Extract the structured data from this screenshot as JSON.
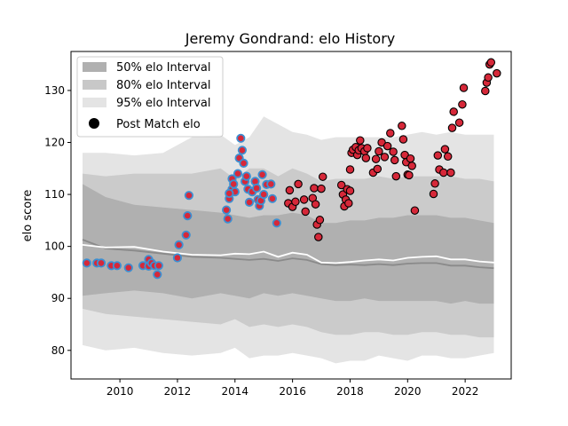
{
  "chart_data": {
    "type": "scatter",
    "title": "Jeremy Gondrand: elo History",
    "xlabel": "",
    "ylabel": "elo score",
    "xlim": [
      2008.3,
      2023.6
    ],
    "ylim": [
      74.5,
      137.5
    ],
    "xticks": [
      2010,
      2012,
      2014,
      2016,
      2018,
      2020,
      2022
    ],
    "yticks": [
      80,
      90,
      100,
      110,
      120,
      130
    ],
    "grid": false,
    "legend_position": "top-left",
    "legend": [
      {
        "label": "50% elo Interval",
        "kind": "band",
        "color": "#b0b0b0"
      },
      {
        "label": "80% elo Interval",
        "kind": "band",
        "color": "#c8c8c8"
      },
      {
        "label": "95% elo Interval",
        "kind": "band",
        "color": "#e4e4e4"
      },
      {
        "label": "Post Match elo",
        "kind": "marker",
        "color": "#000000"
      }
    ],
    "colors": {
      "band50": "#b0b0b0",
      "band80": "#cbcbcb",
      "band95": "#e4e4e4",
      "mean_line": "#8a8a8a",
      "median_line": "#ffffff",
      "point_fill": "#d62839",
      "edge_early": "#3d8fd1",
      "edge_late": "#000000"
    },
    "bands": {
      "x": [
        2008.7,
        2009.5,
        2010.5,
        2011.5,
        2012.5,
        2013.5,
        2014.0,
        2014.5,
        2015.0,
        2015.5,
        2016.0,
        2016.5,
        2017.0,
        2017.5,
        2018.0,
        2018.5,
        2019.0,
        2019.5,
        2020.0,
        2020.5,
        2021.0,
        2021.5,
        2022.0,
        2022.5,
        2023.0
      ],
      "mean": [
        101.3,
        99.6,
        99.2,
        98.6,
        98.0,
        97.8,
        97.6,
        97.4,
        97.6,
        97.2,
        97.7,
        97.4,
        96.6,
        96.4,
        96.5,
        96.4,
        96.6,
        96.4,
        96.7,
        96.8,
        96.8,
        96.3,
        96.3,
        96.0,
        95.8
      ],
      "median": [
        100.3,
        99.8,
        99.9,
        99.0,
        98.4,
        98.3,
        98.6,
        98.5,
        99.0,
        98.0,
        98.8,
        98.4,
        96.9,
        96.8,
        97.0,
        97.3,
        97.5,
        97.3,
        97.8,
        98.0,
        98.1,
        97.5,
        97.5,
        97.1,
        96.9
      ],
      "p25": [
        90.5,
        91.0,
        91.5,
        91.0,
        90.0,
        91.0,
        90.5,
        90.0,
        91.0,
        90.5,
        91.0,
        90.5,
        90.0,
        89.5,
        89.5,
        90.0,
        89.5,
        89.5,
        89.5,
        89.5,
        89.5,
        89.0,
        89.5,
        89.0,
        89.0
      ],
      "p75": [
        112.0,
        109.5,
        108.0,
        107.5,
        107.0,
        106.5,
        106.0,
        105.5,
        106.0,
        106.0,
        106.5,
        106.0,
        104.5,
        104.5,
        105.0,
        105.0,
        105.5,
        105.5,
        106.0,
        106.0,
        106.0,
        105.5,
        105.5,
        105.0,
        104.5
      ],
      "p10": [
        88.0,
        87.0,
        86.5,
        86.0,
        85.5,
        85.0,
        86.0,
        84.5,
        85.0,
        84.5,
        85.0,
        84.5,
        83.5,
        83.0,
        83.0,
        83.5,
        83.5,
        83.0,
        83.0,
        83.5,
        83.5,
        83.0,
        83.0,
        82.5,
        82.5
      ],
      "p90": [
        114.0,
        113.5,
        114.0,
        114.0,
        114.0,
        115.0,
        113.0,
        115.0,
        115.0,
        113.5,
        115.0,
        114.0,
        112.5,
        113.0,
        113.0,
        113.0,
        113.5,
        113.0,
        113.5,
        113.5,
        113.5,
        113.5,
        113.0,
        113.0,
        112.5
      ],
      "p2_5": [
        81.0,
        80.0,
        80.5,
        79.5,
        79.0,
        79.5,
        80.5,
        78.5,
        79.0,
        79.0,
        79.5,
        79.0,
        78.5,
        77.5,
        78.0,
        78.0,
        79.0,
        78.5,
        78.0,
        79.0,
        79.0,
        78.5,
        78.5,
        79.0,
        79.5
      ],
      "p97_5": [
        118.0,
        118.0,
        117.5,
        118.0,
        121.0,
        121.5,
        119.5,
        121.0,
        125.0,
        123.5,
        122.0,
        121.5,
        120.5,
        121.0,
        121.0,
        121.0,
        121.0,
        121.0,
        121.5,
        122.0,
        121.5,
        122.0,
        121.5,
        121.5,
        121.5
      ]
    },
    "series": [
      {
        "name": "Post Match elo",
        "edge": "early",
        "points": [
          [
            2008.85,
            96.8
          ],
          [
            2009.2,
            96.8
          ],
          [
            2009.35,
            96.8
          ],
          [
            2009.7,
            96.3
          ],
          [
            2009.9,
            96.3
          ],
          [
            2010.3,
            95.9
          ],
          [
            2010.8,
            96.3
          ],
          [
            2011.0,
            97.5
          ],
          [
            2011.0,
            96.2
          ],
          [
            2011.1,
            96.8
          ],
          [
            2011.2,
            96.3
          ],
          [
            2011.3,
            94.6
          ],
          [
            2011.35,
            96.3
          ],
          [
            2012.0,
            97.8
          ],
          [
            2012.05,
            100.3
          ],
          [
            2012.3,
            102.2
          ],
          [
            2012.35,
            105.9
          ],
          [
            2012.4,
            109.8
          ],
          [
            2013.7,
            107.0
          ],
          [
            2013.75,
            105.3
          ],
          [
            2013.8,
            109.2
          ],
          [
            2013.9,
            111.0
          ],
          [
            2013.9,
            113.0
          ],
          [
            2014.0,
            110.5
          ],
          [
            2014.1,
            114.0
          ],
          [
            2014.15,
            117.0
          ],
          [
            2014.2,
            120.8
          ],
          [
            2014.25,
            118.5
          ],
          [
            2014.3,
            116.0
          ],
          [
            2014.35,
            112.5
          ],
          [
            2014.4,
            113.5
          ],
          [
            2014.45,
            111.0
          ],
          [
            2014.5,
            108.5
          ],
          [
            2014.6,
            110.5
          ],
          [
            2014.7,
            112.5
          ],
          [
            2014.75,
            111.2
          ],
          [
            2014.8,
            109.0
          ],
          [
            2014.85,
            107.8
          ],
          [
            2014.9,
            108.8
          ],
          [
            2014.95,
            113.8
          ],
          [
            2015.0,
            110.0
          ],
          [
            2015.1,
            111.9
          ],
          [
            2015.25,
            112.0
          ],
          [
            2015.3,
            109.2
          ],
          [
            2015.45,
            104.5
          ],
          [
            2013.8,
            110.2
          ],
          [
            2013.95,
            112.0
          ]
        ]
      },
      {
        "name": "Post Match elo",
        "edge": "late",
        "points": [
          [
            2015.85,
            108.3
          ],
          [
            2015.9,
            110.8
          ],
          [
            2016.0,
            107.6
          ],
          [
            2016.1,
            108.6
          ],
          [
            2016.2,
            112.0
          ],
          [
            2016.4,
            109.0
          ],
          [
            2016.45,
            106.7
          ],
          [
            2016.7,
            109.3
          ],
          [
            2016.75,
            111.2
          ],
          [
            2016.8,
            108.1
          ],
          [
            2016.85,
            104.2
          ],
          [
            2016.9,
            101.8
          ],
          [
            2016.95,
            105.1
          ],
          [
            2017.0,
            111.1
          ],
          [
            2017.05,
            113.4
          ],
          [
            2017.7,
            111.8
          ],
          [
            2017.75,
            110.0
          ],
          [
            2017.8,
            107.7
          ],
          [
            2017.85,
            109.0
          ],
          [
            2017.9,
            111.0
          ],
          [
            2017.95,
            108.3
          ],
          [
            2018.0,
            110.7
          ],
          [
            2018.0,
            114.8
          ],
          [
            2018.05,
            118.0
          ],
          [
            2018.1,
            118.6
          ],
          [
            2018.2,
            119.1
          ],
          [
            2018.25,
            117.6
          ],
          [
            2018.3,
            118.5
          ],
          [
            2018.35,
            120.4
          ],
          [
            2018.4,
            118.9
          ],
          [
            2018.5,
            118.3
          ],
          [
            2018.55,
            117.0
          ],
          [
            2018.6,
            118.9
          ],
          [
            2018.8,
            114.2
          ],
          [
            2018.9,
            116.8
          ],
          [
            2018.95,
            114.9
          ],
          [
            2019.0,
            118.3
          ],
          [
            2019.1,
            120.0
          ],
          [
            2019.2,
            117.2
          ],
          [
            2019.3,
            119.3
          ],
          [
            2019.4,
            121.8
          ],
          [
            2019.5,
            118.2
          ],
          [
            2019.55,
            116.6
          ],
          [
            2019.6,
            113.5
          ],
          [
            2019.8,
            123.2
          ],
          [
            2019.85,
            120.6
          ],
          [
            2019.9,
            117.6
          ],
          [
            2019.95,
            116.2
          ],
          [
            2020.0,
            113.8
          ],
          [
            2020.05,
            113.7
          ],
          [
            2020.1,
            116.9
          ],
          [
            2020.15,
            115.5
          ],
          [
            2020.25,
            106.9
          ],
          [
            2020.9,
            110.1
          ],
          [
            2020.95,
            112.1
          ],
          [
            2021.05,
            117.5
          ],
          [
            2021.1,
            114.8
          ],
          [
            2021.25,
            114.2
          ],
          [
            2021.3,
            118.7
          ],
          [
            2021.4,
            117.3
          ],
          [
            2021.5,
            114.2
          ],
          [
            2021.55,
            122.8
          ],
          [
            2021.6,
            125.9
          ],
          [
            2021.8,
            123.8
          ],
          [
            2021.9,
            127.3
          ],
          [
            2021.95,
            130.5
          ],
          [
            2022.7,
            129.9
          ],
          [
            2022.75,
            131.5
          ],
          [
            2022.8,
            132.5
          ],
          [
            2022.85,
            135.0
          ],
          [
            2022.9,
            135.4
          ],
          [
            2023.1,
            133.3
          ]
        ]
      }
    ]
  }
}
